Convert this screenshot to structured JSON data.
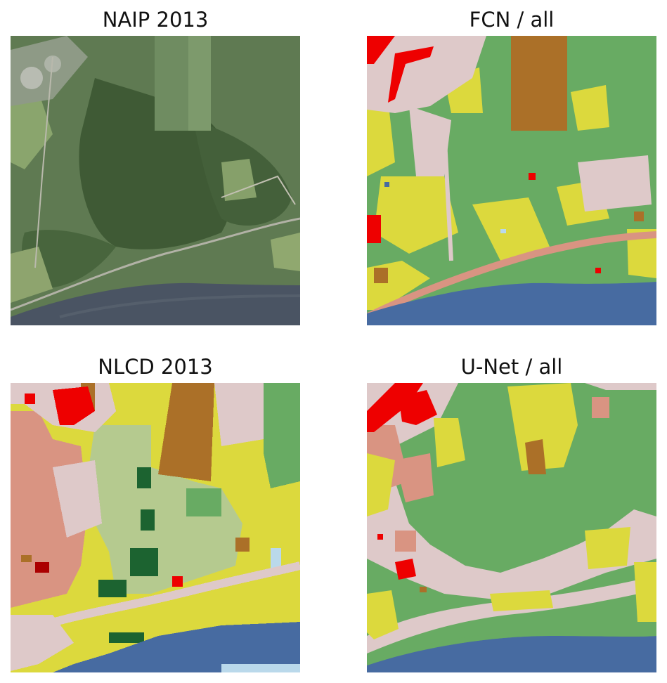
{
  "panels": [
    {
      "title": "NAIP 2013"
    },
    {
      "title": "FCN / all"
    },
    {
      "title": "NLCD 2013"
    },
    {
      "title": "U-Net / all"
    }
  ],
  "colors": {
    "water": "#476ba1",
    "developed_open": "#dec9c9",
    "developed_low": "#d99482",
    "developed_med": "#ee0000",
    "developed_high": "#ab0000",
    "barren": "#b3aea3",
    "deciduous_forest": "#68ab63",
    "evergreen_forest": "#1c6330",
    "mixed_forest": "#b5ca8f",
    "shrub": "#ccba7d",
    "grassland": "#e3e3c2",
    "pasture_hay": "#dcd93d",
    "cultivated_crops": "#ab7028",
    "wetlands": "#bad9eb",
    "aerial_forest": "#3f5a35",
    "aerial_field": "#7f9a5e",
    "aerial_crop": "#5d7e55",
    "aerial_river": "#4a5463"
  }
}
